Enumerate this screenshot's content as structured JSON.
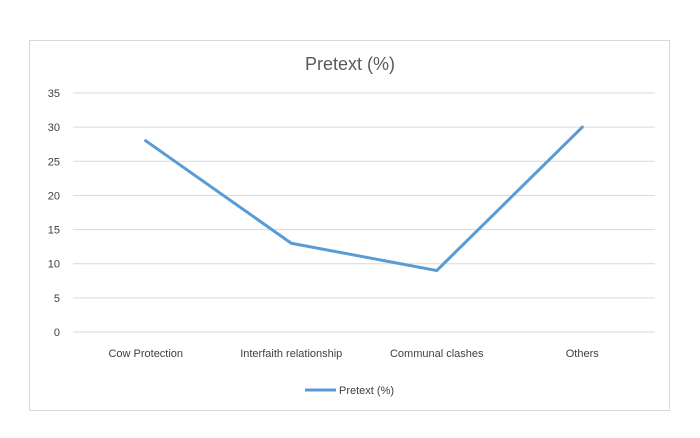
{
  "chart_data": {
    "type": "line",
    "title": "Pretext (%)",
    "categories": [
      "Cow Protection",
      "Interfaith relationship",
      "Communal clashes",
      "Others"
    ],
    "series": [
      {
        "name": "Pretext (%)",
        "values": [
          28,
          13,
          9,
          30
        ],
        "color": "#5b9bd5"
      }
    ],
    "ylim": [
      0,
      35
    ],
    "yticks": [
      0,
      5,
      10,
      15,
      20,
      25,
      30,
      35
    ],
    "ytick_labels": [
      "0",
      "5",
      "10",
      "15",
      "20",
      "25",
      "30",
      "35"
    ],
    "grid": true,
    "legend": "bottom"
  }
}
